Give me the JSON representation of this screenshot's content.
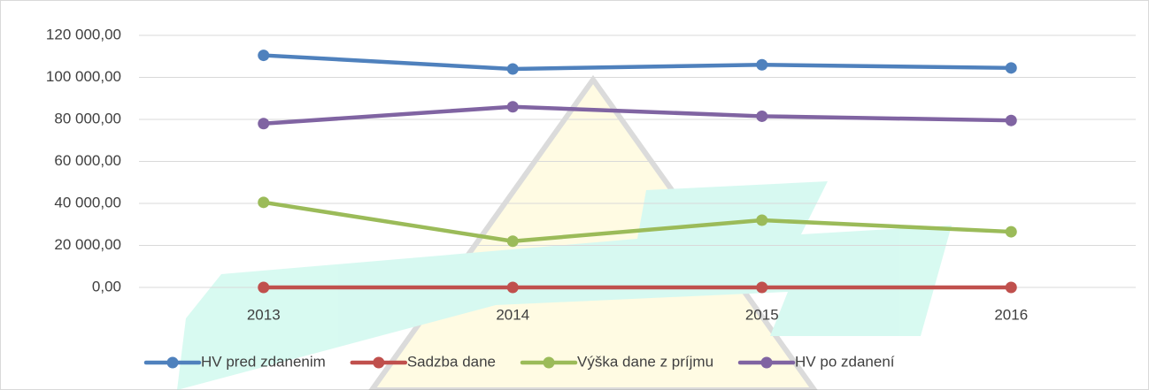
{
  "chart_data": {
    "type": "line",
    "categories": [
      "2013",
      "2014",
      "2015",
      "2016"
    ],
    "series": [
      {
        "name": "HV pred zdanenim",
        "color": "#4f81bd",
        "values": [
          110500,
          104000,
          106000,
          104500
        ]
      },
      {
        "name": "Sadzba dane",
        "color": "#c0504d",
        "values": [
          0,
          0,
          0,
          0
        ]
      },
      {
        "name": "Výška dane z príjmu",
        "color": "#9bbb59",
        "values": [
          40500,
          22000,
          32000,
          26500
        ]
      },
      {
        "name": "HV po zdanení",
        "color": "#8064a2",
        "values": [
          78000,
          86000,
          81500,
          79500
        ]
      }
    ],
    "ylim": [
      0,
      120000
    ],
    "yticks": [
      {
        "value": 0,
        "label": "0,00"
      },
      {
        "value": 20000,
        "label": "20 000,00"
      },
      {
        "value": 40000,
        "label": "40 000,00"
      },
      {
        "value": 60000,
        "label": "60 000,00"
      },
      {
        "value": 80000,
        "label": "80 000,00"
      },
      {
        "value": 100000,
        "label": "100 000,00"
      },
      {
        "value": 120000,
        "label": "120 000,00"
      }
    ],
    "grid": true,
    "legend": "bottom"
  }
}
